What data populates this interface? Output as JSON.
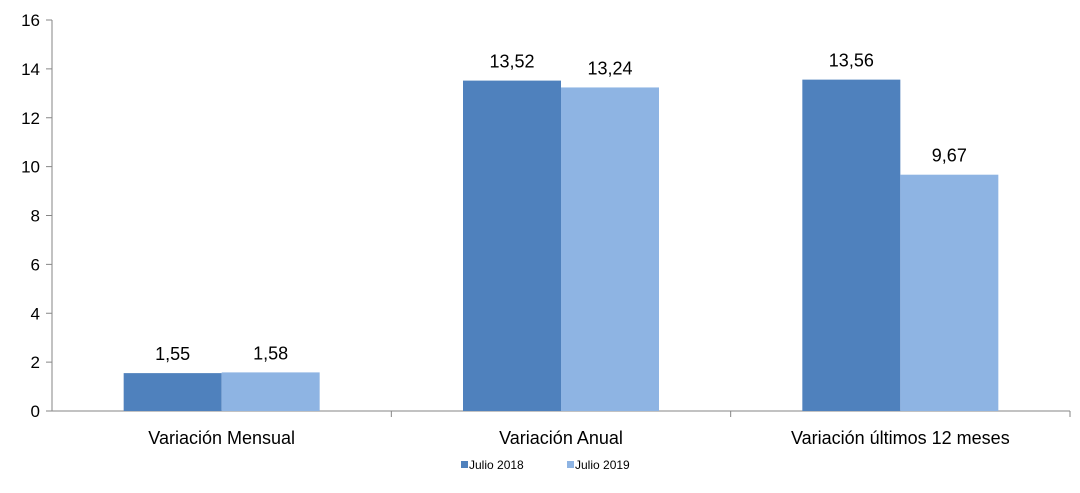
{
  "chart_data": {
    "type": "bar",
    "categories": [
      "Variación Mensual",
      "Variación Anual",
      "Variación últimos 12 meses"
    ],
    "series": [
      {
        "name": "Julio 2018",
        "values": [
          1.55,
          13.52,
          13.56
        ],
        "labels": [
          "1,55",
          "13,52",
          "13,56"
        ],
        "color": "#4f81bd"
      },
      {
        "name": "Julio 2019",
        "values": [
          1.58,
          13.24,
          9.67
        ],
        "labels": [
          "1,58",
          "13,24",
          "9,67"
        ],
        "color": "#8eb4e3"
      }
    ],
    "ylim": [
      0,
      16
    ],
    "yticks": [
      0,
      2,
      4,
      6,
      8,
      10,
      12,
      14,
      16
    ],
    "grid": false,
    "legend": "bottom-center",
    "title": "",
    "xlabel": "",
    "ylabel": ""
  }
}
